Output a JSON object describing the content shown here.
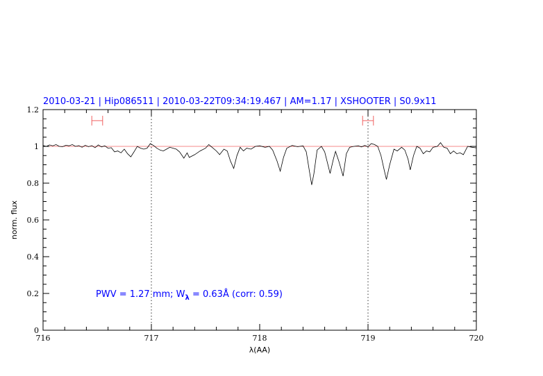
{
  "chart_data": {
    "type": "line",
    "title": "2010-03-21 | Hip086511 | 2010-03-22T09:34:19.467 | AM=1.17 | XSHOOTER | S0.9x11",
    "xlabel": "λ(AA)",
    "ylabel": "norm. flux",
    "xlim": [
      716,
      720
    ],
    "ylim": [
      0,
      1.2
    ],
    "xticks": [
      "716",
      "717",
      "718",
      "719",
      "720"
    ],
    "yticks": [
      "0",
      "0.2",
      "0.4",
      "0.6",
      "0.8",
      "1",
      "1.2"
    ],
    "grid": false,
    "annotation": {
      "prefix": "PWV = 1.27 mm; W",
      "sub": "λ",
      "suffix": " = 0.63Å (corr: 0.59)"
    },
    "reference_line": {
      "y": 1.0,
      "color": "#f06060"
    },
    "vertical_markers": [
      717,
      719
    ],
    "range_markers": [
      {
        "x": [
          716.45,
          716.55
        ],
        "y": 1.14,
        "color": "#f06060"
      },
      {
        "x": [
          718.95,
          719.05
        ],
        "y": 1.14,
        "color": "#f06060"
      }
    ],
    "title_color": "#0000ff",
    "series": [
      {
        "color": "#000000",
        "x": [
          716.0,
          716.03,
          716.06,
          716.09,
          716.12,
          716.15,
          716.18,
          716.21,
          716.24,
          716.27,
          716.3,
          716.33,
          716.36,
          716.39,
          716.42,
          716.45,
          716.48,
          716.51,
          716.54,
          716.57,
          716.6,
          716.63,
          716.66,
          716.69,
          716.72,
          716.75,
          716.78,
          716.81,
          716.84,
          716.87,
          716.9,
          716.93,
          716.96,
          716.99,
          717.02,
          717.05,
          717.08,
          717.11,
          717.14,
          717.17,
          717.2,
          717.23,
          717.26,
          717.3,
          717.33,
          717.35,
          717.4,
          717.45,
          717.5,
          717.53,
          717.56,
          717.6,
          717.63,
          717.67,
          717.7,
          717.73,
          717.76,
          717.79,
          717.82,
          717.85,
          717.88,
          717.92,
          717.96,
          718.0,
          718.05,
          718.09,
          718.12,
          718.16,
          718.19,
          718.22,
          718.25,
          718.3,
          718.35,
          718.4,
          718.43,
          718.46,
          718.48,
          718.5,
          718.53,
          718.57,
          718.6,
          718.65,
          718.68,
          718.7,
          718.73,
          718.77,
          718.8,
          718.83,
          718.87,
          718.91,
          718.94,
          718.97,
          719.0,
          719.03,
          719.06,
          719.09,
          719.12,
          719.15,
          719.17,
          719.2,
          719.24,
          719.27,
          719.31,
          719.34,
          719.37,
          719.39,
          719.42,
          719.45,
          719.48,
          719.51,
          719.54,
          719.57,
          719.6,
          719.64,
          719.67,
          719.7,
          719.73,
          719.76,
          719.79,
          719.82,
          719.85,
          719.88,
          719.92,
          719.96,
          720.0
        ],
        "y": [
          1.005,
          1.0,
          1.008,
          1.003,
          1.01,
          1.0,
          0.998,
          1.006,
          1.003,
          1.01,
          1.0,
          1.004,
          0.995,
          1.006,
          0.998,
          1.004,
          0.993,
          1.008,
          0.997,
          1.003,
          0.99,
          0.993,
          0.97,
          0.975,
          0.965,
          0.985,
          0.96,
          0.943,
          0.97,
          1.0,
          0.99,
          0.985,
          0.99,
          1.015,
          1.005,
          0.99,
          0.98,
          0.975,
          0.985,
          0.995,
          0.99,
          0.985,
          0.97,
          0.936,
          0.965,
          0.94,
          0.955,
          0.975,
          0.99,
          1.01,
          0.995,
          0.975,
          0.955,
          0.985,
          0.975,
          0.92,
          0.88,
          0.95,
          0.995,
          0.975,
          0.99,
          0.985,
          1.0,
          1.003,
          0.995,
          1.0,
          0.98,
          0.92,
          0.865,
          0.94,
          0.99,
          1.005,
          0.998,
          1.003,
          0.97,
          0.86,
          0.79,
          0.85,
          0.98,
          1.0,
          0.97,
          0.853,
          0.93,
          0.973,
          0.92,
          0.838,
          0.96,
          0.995,
          1.0,
          1.003,
          0.997,
          1.005,
          0.998,
          1.015,
          1.01,
          1.0,
          0.95,
          0.87,
          0.82,
          0.9,
          0.985,
          0.975,
          0.995,
          0.98,
          0.93,
          0.872,
          0.95,
          1.0,
          0.99,
          0.96,
          0.975,
          0.97,
          0.995,
          1.0,
          1.02,
          0.995,
          0.99,
          0.96,
          0.975,
          0.96,
          0.965,
          0.955,
          1.0,
          0.995,
          0.992
        ]
      }
    ]
  }
}
